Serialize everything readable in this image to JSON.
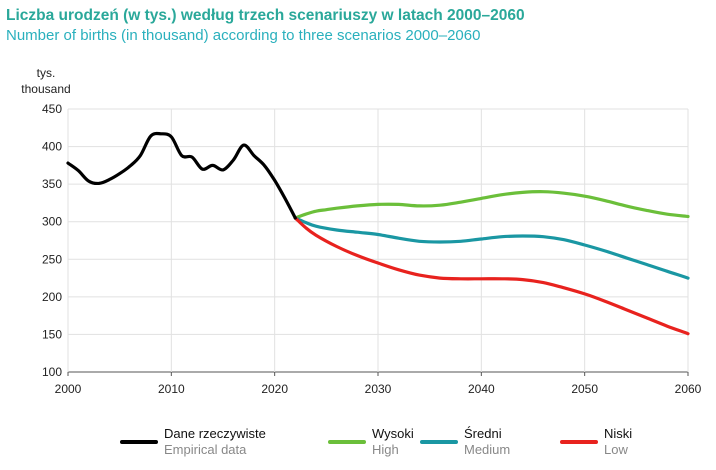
{
  "chart_data": {
    "type": "line",
    "title": "Liczba urodzeń (w tys.) według trzech scenariuszy w latach 2000–2060",
    "subtitle": "Number of births (in thousand) according  to three scenarios 2000–2060",
    "ylabel": [
      "tys.",
      "thousand"
    ],
    "xlabel": "",
    "xlim": [
      2000,
      2060
    ],
    "ylim": [
      100,
      450
    ],
    "xticks": [
      2000,
      2010,
      2020,
      2030,
      2040,
      2050,
      2060
    ],
    "yticks": [
      100,
      150,
      200,
      250,
      300,
      350,
      400,
      450
    ],
    "grid": true,
    "legend_position": "bottom",
    "series": [
      {
        "name": "Dane rzeczywiste",
        "name_en": "Empirical data",
        "color": "#000000",
        "x": [
          2000,
          2001,
          2002,
          2003,
          2004,
          2005,
          2006,
          2007,
          2008,
          2009,
          2010,
          2011,
          2012,
          2013,
          2014,
          2015,
          2016,
          2017,
          2018,
          2019,
          2020,
          2021,
          2022
        ],
        "y": [
          378,
          368,
          354,
          351,
          356,
          364,
          374,
          388,
          414,
          417,
          413,
          388,
          386,
          370,
          375,
          369,
          382,
          402,
          388,
          375,
          355,
          331,
          305
        ]
      },
      {
        "name": "Wysoki",
        "name_en": "High",
        "color": "#6bbf3a",
        "x": [
          2022,
          2023,
          2024,
          2025,
          2026,
          2028,
          2030,
          2032,
          2034,
          2036,
          2038,
          2040,
          2042,
          2044,
          2046,
          2048,
          2050,
          2052,
          2054,
          2056,
          2058,
          2060
        ],
        "y": [
          305,
          310,
          314,
          316,
          318,
          321,
          323,
          323,
          321,
          322,
          326,
          331,
          336,
          339,
          340,
          338,
          334,
          328,
          321,
          315,
          310,
          307
        ]
      },
      {
        "name": "Średni",
        "name_en": "Medium",
        "color": "#1a97a3",
        "x": [
          2022,
          2023,
          2024,
          2026,
          2028,
          2030,
          2032,
          2034,
          2036,
          2038,
          2040,
          2042,
          2044,
          2046,
          2048,
          2050,
          2052,
          2054,
          2056,
          2058,
          2060
        ],
        "y": [
          305,
          299,
          294,
          289,
          286,
          283,
          278,
          274,
          273,
          274,
          277,
          280,
          281,
          280,
          276,
          269,
          261,
          252,
          243,
          234,
          225
        ]
      },
      {
        "name": "Niski",
        "name_en": "Low",
        "color": "#e8221e",
        "x": [
          2022,
          2023,
          2024,
          2026,
          2028,
          2030,
          2032,
          2034,
          2036,
          2038,
          2040,
          2042,
          2044,
          2046,
          2048,
          2050,
          2052,
          2054,
          2056,
          2058,
          2060
        ],
        "y": [
          305,
          292,
          282,
          267,
          255,
          245,
          236,
          229,
          225,
          224,
          224,
          224,
          223,
          219,
          212,
          204,
          194,
          183,
          172,
          161,
          151
        ]
      }
    ]
  }
}
